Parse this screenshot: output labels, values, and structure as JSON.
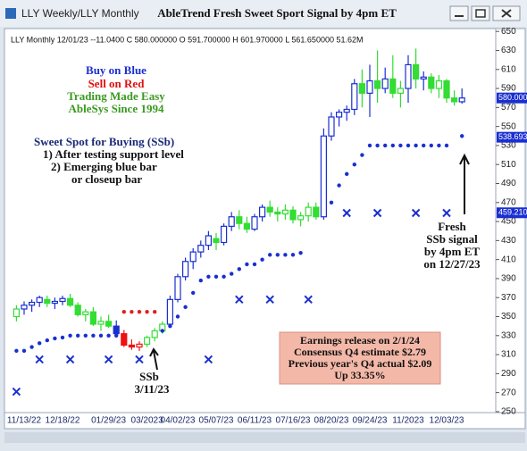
{
  "window_title": "LLY Weekly/LLY Monthly",
  "chart_data": {
    "type": "candlestick",
    "title": "AbleTrend Fresh Sweet Sport Signal by 4pm ET",
    "info_line": "LLY  Monthly 12/01/23 --11.0400 C 580.000000 O 591.700000 H 601.970000 L 561.650000 51.62M",
    "categories": [
      null,
      "11/13/22",
      null,
      null,
      null,
      null,
      "12/18/22",
      null,
      null,
      null,
      null,
      null,
      "01/29/23",
      null,
      null,
      null,
      null,
      "03/2023",
      null,
      null,
      null,
      "04/02/23",
      null,
      null,
      null,
      null,
      "05/07/23",
      null,
      null,
      null,
      null,
      "06/11/23",
      null,
      null,
      null,
      null,
      "07/16/23",
      null,
      null,
      null,
      null,
      "08/20/23",
      null,
      null,
      null,
      null,
      "09/24/23",
      null,
      null,
      null,
      null,
      "11/2023",
      null,
      null,
      null,
      null,
      "12/03/23",
      null,
      null
    ],
    "open": [
      350,
      358,
      362,
      365,
      368,
      364,
      366,
      369,
      362,
      352,
      355,
      342,
      345,
      340,
      332,
      320,
      318,
      321,
      328,
      335,
      342,
      368,
      392,
      408,
      418,
      425,
      432,
      428,
      445,
      455,
      448,
      442,
      455,
      465,
      460,
      458,
      462,
      452,
      456,
      465,
      455,
      540,
      560,
      565,
      568,
      595,
      585,
      598,
      590,
      600,
      585,
      590,
      615,
      600,
      602,
      590,
      598,
      580,
      576
    ],
    "high": [
      362,
      366,
      368,
      372,
      372,
      370,
      372,
      374,
      365,
      358,
      360,
      350,
      352,
      346,
      336,
      326,
      324,
      330,
      338,
      345,
      372,
      395,
      412,
      422,
      430,
      440,
      438,
      448,
      460,
      462,
      455,
      458,
      468,
      472,
      465,
      468,
      466,
      460,
      470,
      470,
      548,
      565,
      568,
      572,
      600,
      610,
      615,
      630,
      612,
      625,
      598,
      625,
      632,
      608,
      606,
      604,
      600,
      588,
      590
    ],
    "low": [
      345,
      352,
      355,
      360,
      360,
      358,
      362,
      360,
      350,
      345,
      340,
      335,
      338,
      328,
      318,
      315,
      314,
      318,
      324,
      332,
      340,
      365,
      388,
      400,
      412,
      420,
      420,
      425,
      440,
      442,
      438,
      440,
      450,
      455,
      450,
      452,
      448,
      445,
      450,
      452,
      452,
      535,
      550,
      556,
      562,
      570,
      560,
      575,
      585,
      580,
      570,
      575,
      590,
      588,
      585,
      580,
      575,
      572,
      574
    ],
    "close": [
      358,
      362,
      365,
      370,
      364,
      366,
      369,
      362,
      352,
      355,
      342,
      345,
      340,
      332,
      320,
      318,
      321,
      328,
      335,
      342,
      368,
      392,
      408,
      418,
      425,
      435,
      428,
      445,
      455,
      448,
      442,
      455,
      465,
      460,
      458,
      462,
      452,
      456,
      465,
      455,
      540,
      560,
      565,
      568,
      595,
      585,
      598,
      590,
      600,
      585,
      590,
      615,
      600,
      602,
      590,
      598,
      580,
      576,
      580
    ],
    "bar_colors": [
      "#33dd33",
      "#1a2fd0",
      "#1a2fd0",
      "#1a2fd0",
      "#33dd33",
      "#1a2fd0",
      "#1a2fd0",
      "#33dd33",
      "#33dd33",
      "#33dd33",
      "#33dd33",
      "#33dd33",
      "#33dd33",
      "#1a2fd0",
      "#ee1111",
      "#ee1111",
      "#ee1111",
      "#33dd33",
      "#33dd33",
      "#33dd33",
      "#1a2fd0",
      "#1a2fd0",
      "#1a2fd0",
      "#1a2fd0",
      "#1a2fd0",
      "#1a2fd0",
      "#33dd33",
      "#1a2fd0",
      "#1a2fd0",
      "#33dd33",
      "#33dd33",
      "#1a2fd0",
      "#1a2fd0",
      "#33dd33",
      "#33dd33",
      "#33dd33",
      "#33dd33",
      "#33dd33",
      "#33dd33",
      "#33dd33",
      "#1a2fd0",
      "#1a2fd0",
      "#1a2fd0",
      "#1a2fd0",
      "#1a2fd0",
      "#33dd33",
      "#1a2fd0",
      "#33dd33",
      "#1a2fd0",
      "#33dd33",
      "#33dd33",
      "#1a2fd0",
      "#33dd33",
      "#1a2fd0",
      "#33dd33",
      "#33dd33",
      "#33dd33",
      "#33dd33",
      "#1a2fd0"
    ],
    "stop_dots": [
      {
        "color": "#1a2fd0",
        "values": [
          314,
          314,
          318,
          322,
          325,
          327,
          328,
          330,
          330,
          330,
          330,
          330,
          330,
          330,
          null,
          null,
          null,
          null,
          null,
          335,
          340,
          350,
          360,
          375,
          388,
          392,
          392,
          392,
          395,
          400,
          405,
          405,
          410,
          415,
          415,
          415,
          415,
          417,
          null,
          null,
          null,
          470,
          488,
          500,
          510,
          520,
          530,
          530,
          530,
          530,
          530,
          530,
          530,
          530,
          530,
          530,
          530,
          null,
          540
        ]
      },
      {
        "color": "#e02020",
        "values": [
          null,
          null,
          null,
          null,
          null,
          null,
          null,
          null,
          null,
          null,
          null,
          null,
          null,
          null,
          355,
          355,
          355,
          355,
          355,
          null,
          null,
          null,
          null,
          null,
          null,
          null,
          null,
          null,
          null,
          null,
          null,
          null,
          null,
          null,
          null,
          null,
          null,
          null,
          null,
          null,
          null,
          null,
          null,
          null,
          null,
          null,
          null,
          null,
          null,
          null,
          null,
          null,
          null,
          null,
          null,
          null,
          null,
          null,
          null
        ]
      }
    ],
    "x_markers": {
      "color": "#1a2fd0",
      "values": [
        271,
        null,
        null,
        305,
        null,
        null,
        null,
        305,
        null,
        null,
        null,
        null,
        305,
        null,
        null,
        null,
        305,
        null,
        null,
        null,
        null,
        null,
        null,
        null,
        null,
        305,
        null,
        null,
        null,
        368,
        null,
        null,
        null,
        368,
        null,
        null,
        null,
        null,
        368,
        null,
        null,
        null,
        null,
        459,
        null,
        null,
        null,
        459,
        null,
        null,
        null,
        null,
        459,
        null,
        null,
        null,
        459,
        null,
        null
      ]
    },
    "ylim": [
      249,
      653
    ],
    "yticks": [
      250,
      270,
      290,
      310,
      330,
      350,
      370,
      390,
      410,
      430,
      450,
      470,
      490,
      510,
      530,
      550,
      570,
      590,
      610,
      630,
      650
    ],
    "price_tags": [
      {
        "value": 580,
        "label": "580.000"
      },
      {
        "value": 538.693,
        "label": "538.693"
      },
      {
        "value": 459.21,
        "label": "459.210"
      }
    ],
    "notes_top": [
      "Buy on Blue",
      "Sell on Red",
      "Trading Made Easy",
      "AbleSys Since 1994"
    ],
    "notes_sweet": [
      "Sweet Spot for Buying (SSb)",
      "1) After testing support level",
      "2) Emerging blue bar",
      "or closeup bar"
    ],
    "ssb_note": [
      "SSb",
      "3/11/23"
    ],
    "fresh_note": [
      "Fresh",
      "SSb signal",
      "by 4pm ET",
      "on 12/27/23"
    ],
    "earnings_box": [
      "Earnings release on 2/1/24",
      "Consensus Q4 estimate $2.79",
      "Previous year's Q4 actual $2.09",
      "Up 33.35%"
    ]
  }
}
